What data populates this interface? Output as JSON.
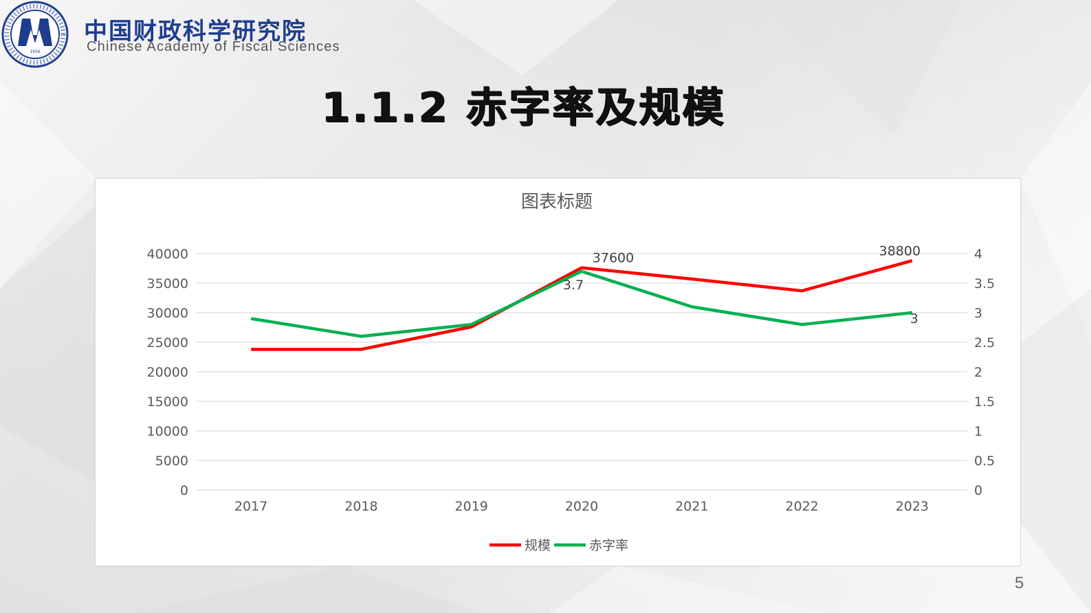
{
  "header": {
    "org_name_cn": "中国财政科学研究院",
    "org_name_en": "Chinese Academy of Fiscal Sciences",
    "logo_year": "1956",
    "slide_title": "1.1.2 赤字率及规模"
  },
  "page_number": "5",
  "colors": {
    "scale_line": "#ff0000",
    "rate_line": "#00b050",
    "brand_blue": "#1f3d8f",
    "gridline": "#d9d9d9",
    "axis_text": "#595959"
  },
  "chart_data": {
    "type": "line",
    "title": "图表标题",
    "categories": [
      "2017",
      "2018",
      "2019",
      "2020",
      "2021",
      "2022",
      "2023"
    ],
    "series": [
      {
        "name": "规模",
        "axis": "left",
        "color": "#ff0000",
        "values": [
          23800,
          23800,
          27600,
          37600,
          35700,
          33700,
          38800
        ],
        "data_labels": {
          "2020": "37600",
          "2023": "38800"
        }
      },
      {
        "name": "赤字率",
        "axis": "right",
        "color": "#00b050",
        "values": [
          2.9,
          2.6,
          2.8,
          3.7,
          3.1,
          2.8,
          3.0
        ],
        "data_labels": {
          "2020": "3.7",
          "2023": "3"
        }
      }
    ],
    "xlabel": "",
    "ylabel": "",
    "ylim": [
      0,
      40000
    ],
    "y_ticks": [
      "0",
      "5000",
      "10000",
      "15000",
      "20000",
      "25000",
      "30000",
      "35000",
      "40000"
    ],
    "y2lim": [
      0,
      4
    ],
    "y2_ticks": [
      "0",
      "0.5",
      "1",
      "1.5",
      "2",
      "2.5",
      "3",
      "3.5",
      "4"
    ],
    "grid": true,
    "legend_position": "bottom",
    "legend": [
      "规模",
      "赤字率"
    ]
  }
}
